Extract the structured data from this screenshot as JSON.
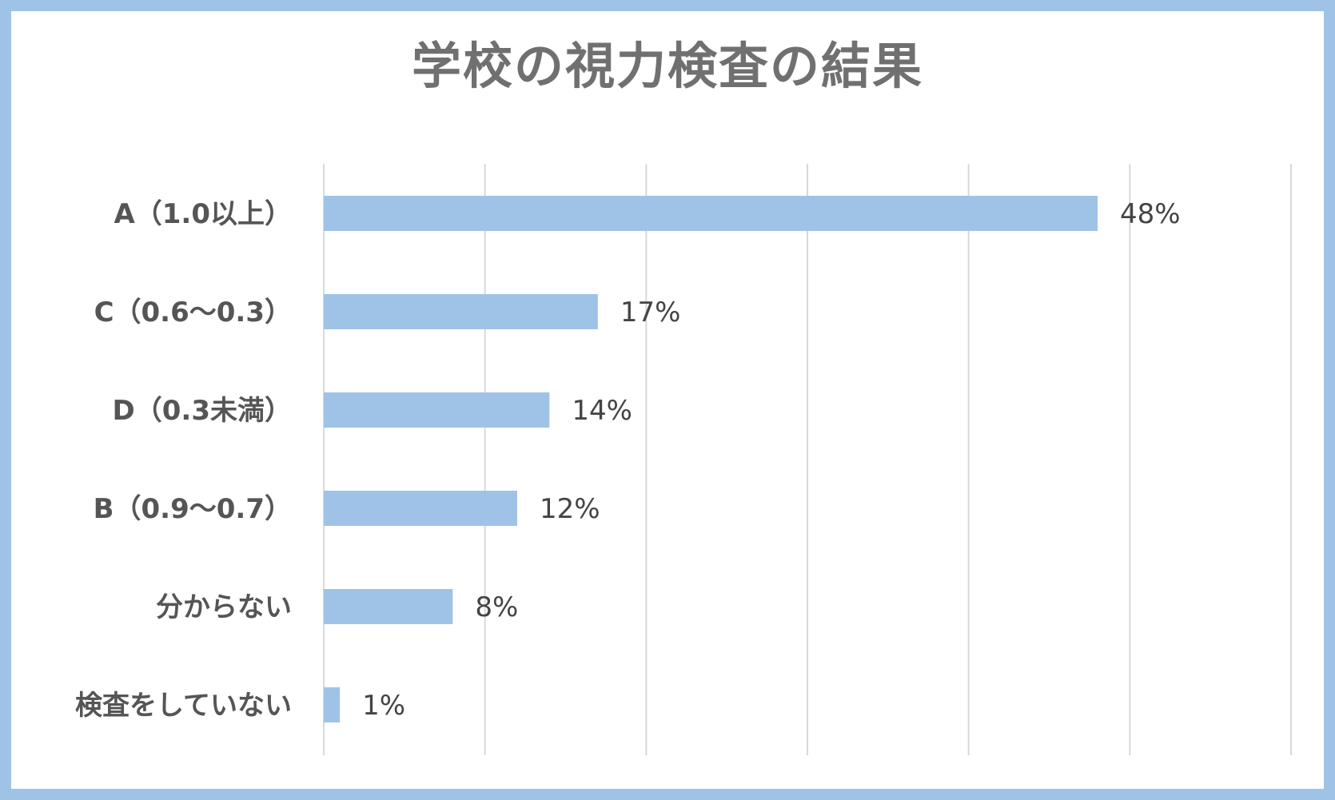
{
  "chart_data": {
    "type": "bar",
    "orientation": "horizontal",
    "title": "学校の視力検査の結果",
    "categories": [
      "A（1.0以上）",
      "C（0.6〜0.3）",
      "D（0.3未満）",
      "B（0.9〜0.7）",
      "分からない",
      "検査をしていない"
    ],
    "values": [
      48,
      17,
      14,
      12,
      8,
      1
    ],
    "value_labels": [
      "48%",
      "17%",
      "14%",
      "12%",
      "8%",
      "1%"
    ],
    "xlim": [
      0,
      60
    ],
    "x_gridlines": [
      0,
      10,
      20,
      30,
      40,
      50,
      60
    ],
    "grid": true,
    "legend": "none",
    "bar_color": "#9fc3e7",
    "grid_color": "#d9d9d9",
    "frame_color": "#9fc3e7"
  }
}
